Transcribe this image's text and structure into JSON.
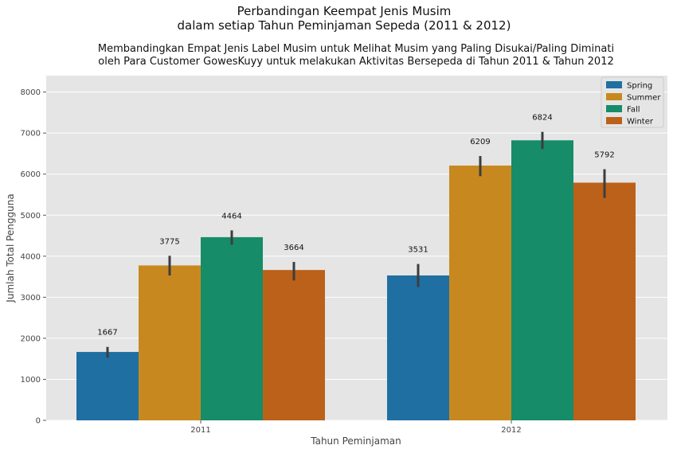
{
  "chart_data": {
    "type": "bar",
    "suptitle": [
      "Perbandingan Keempat Jenis Musim",
      "dalam setiap Tahun Peminjaman Sepeda (2011 & 2012)"
    ],
    "title": [
      "Membandingkan Empat Jenis Label Musim untuk Melihat Musim yang Paling Disukai/Paling Diminati",
      "oleh Para Customer GowesKuyy untuk melakukan Aktivitas Bersepeda di Tahun 2011 & Tahun 2012"
    ],
    "xlabel": "Tahun Peminjaman",
    "ylabel": "Jumlah Total Pengguna",
    "categories": [
      "2011",
      "2012"
    ],
    "ylim": [
      0,
      8400
    ],
    "yticks": [
      0,
      1000,
      2000,
      3000,
      4000,
      5000,
      6000,
      7000,
      8000
    ],
    "grid": true,
    "legend_position": "top-right",
    "series": [
      {
        "name": "Spring",
        "color": "#1f6fa3",
        "values": [
          1667,
          3531
        ],
        "err_low": [
          1530,
          3250
        ],
        "err_high": [
          1790,
          3810
        ]
      },
      {
        "name": "Summer",
        "color": "#c7891f",
        "values": [
          3775,
          6209
        ],
        "err_low": [
          3530,
          5950
        ],
        "err_high": [
          4010,
          6440
        ]
      },
      {
        "name": "Fall",
        "color": "#168c68",
        "values": [
          4464,
          6824
        ],
        "err_low": [
          4280,
          6610
        ],
        "err_high": [
          4630,
          7030
        ]
      },
      {
        "name": "Winter",
        "color": "#bc6119",
        "values": [
          3664,
          5792
        ],
        "err_low": [
          3410,
          5420
        ],
        "err_high": [
          3860,
          6120
        ]
      }
    ],
    "data_labels": [
      [
        "1667",
        "3531"
      ],
      [
        "3775",
        "6209"
      ],
      [
        "4464",
        "6824"
      ],
      [
        "3664",
        "5792"
      ]
    ]
  }
}
